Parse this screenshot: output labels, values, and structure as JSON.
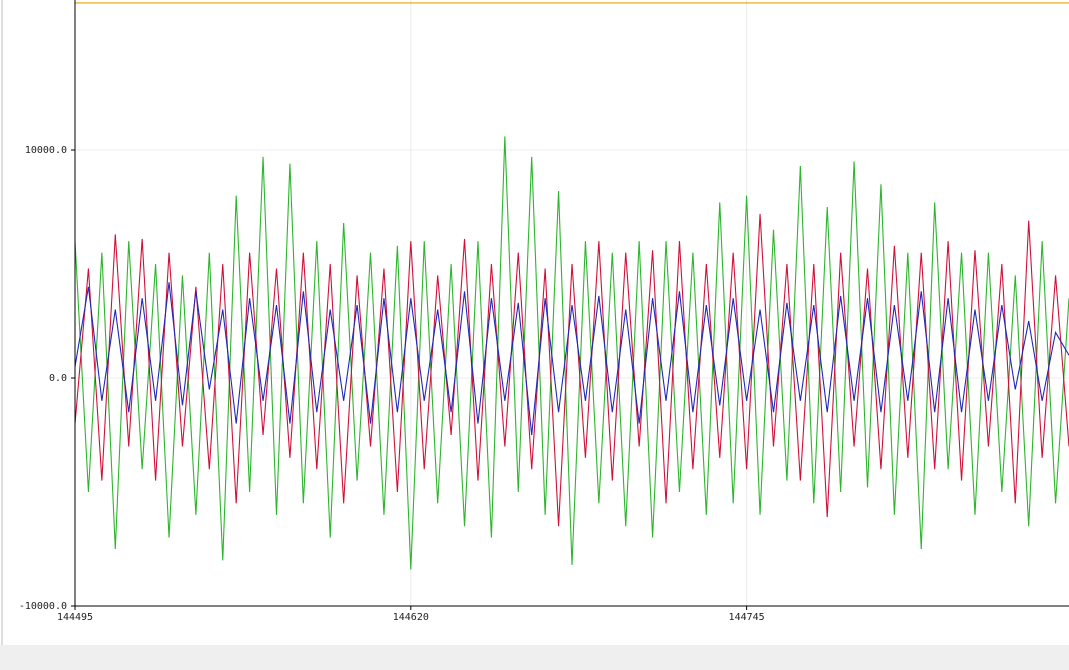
{
  "chart_data": {
    "type": "line",
    "x": [
      144495,
      144500,
      144505,
      144510,
      144515,
      144520,
      144525,
      144530,
      144535,
      144540,
      144545,
      144550,
      144555,
      144560,
      144565,
      144570,
      144575,
      144580,
      144585,
      144590,
      144595,
      144600,
      144605,
      144610,
      144615,
      144620,
      144625,
      144630,
      144635,
      144640,
      144645,
      144650,
      144655,
      144660,
      144665,
      144670,
      144675,
      144680,
      144685,
      144690,
      144695,
      144700,
      144705,
      144710,
      144715,
      144720,
      144725,
      144730,
      144735,
      144740,
      144745,
      144750,
      144755,
      144760,
      144765,
      144770,
      144775,
      144780,
      144785,
      144790,
      144795,
      144800,
      144805,
      144810,
      144815,
      144820,
      144825,
      144830,
      144835,
      144840,
      144845,
      144850,
      144855,
      144860,
      144865
    ],
    "series": [
      {
        "color": "#2db52d",
        "values": [
          6000,
          -5000,
          5500,
          -7500,
          6000,
          -4000,
          5000,
          -7000,
          4500,
          -6000,
          5500,
          -8000,
          8000,
          -5000,
          9700,
          -6000,
          9400,
          -5500,
          6000,
          -7000,
          6800,
          -4500,
          5500,
          -6000,
          5800,
          -8400,
          6000,
          -5500,
          5000,
          -6500,
          6000,
          -7000,
          10600,
          -5000,
          9700,
          -6000,
          8200,
          -8200,
          6000,
          -5500,
          5500,
          -6500,
          6000,
          -7000,
          6000,
          -5000,
          5500,
          -6000,
          7700,
          -5500,
          8000,
          -6000,
          6500,
          -4500,
          9300,
          -5500,
          7500,
          -5000,
          9500,
          -4800,
          8500,
          -6000,
          5500,
          -7500,
          7700,
          -4000,
          5500,
          -6000,
          5500,
          -5000,
          4500,
          -6500,
          6000,
          -5500,
          3500
        ]
      },
      {
        "color": "#d1103a",
        "values": [
          -2000,
          4800,
          -4500,
          6300,
          -3000,
          6100,
          -4500,
          5500,
          -3000,
          4000,
          -4000,
          5000,
          -5500,
          5500,
          -2500,
          4800,
          -3500,
          5500,
          -4000,
          5000,
          -5500,
          4500,
          -3000,
          4800,
          -5000,
          6000,
          -4000,
          4500,
          -2500,
          6100,
          -4500,
          5000,
          -3000,
          5500,
          -4000,
          4800,
          -6500,
          5000,
          -3500,
          6000,
          -4500,
          5500,
          -3000,
          5600,
          -5500,
          6000,
          -4000,
          5000,
          -3500,
          5500,
          -4000,
          7200,
          -3000,
          5000,
          -4500,
          5000,
          -6100,
          5500,
          -3000,
          4800,
          -4000,
          5800,
          -3500,
          5500,
          -4000,
          6000,
          -4500,
          5600,
          -3000,
          5000,
          -5500,
          6900,
          -3500,
          4500,
          -3000
        ]
      },
      {
        "color": "#1f29b8",
        "values": [
          500,
          4000,
          -1000,
          3000,
          -1500,
          3500,
          -1000,
          4200,
          -1200,
          3800,
          -500,
          3000,
          -2000,
          3500,
          -1000,
          3200,
          -2000,
          3800,
          -1500,
          3000,
          -1000,
          3200,
          -2000,
          3500,
          -1500,
          3500,
          -1000,
          3000,
          -1500,
          3800,
          -2000,
          3500,
          -1000,
          3300,
          -2500,
          3500,
          -1500,
          3200,
          -1000,
          3600,
          -1500,
          3000,
          -2000,
          3500,
          -1000,
          3800,
          -1500,
          3200,
          -1200,
          3500,
          -1000,
          3000,
          -1500,
          3300,
          -1000,
          3200,
          -1500,
          3600,
          -1000,
          3500,
          -1500,
          3200,
          -1000,
          3800,
          -1500,
          3500,
          -1500,
          3000,
          -1000,
          3200,
          -500,
          2500,
          -1000,
          2000,
          1000
        ]
      },
      {
        "color": "#e8a400",
        "values": [
          16450,
          16450,
          16450,
          16450,
          16450,
          16450,
          16450,
          16450,
          16450,
          16450,
          16450,
          16450,
          16450,
          16450,
          16450,
          16450,
          16450,
          16450,
          16450,
          16450,
          16450,
          16450,
          16450,
          16450,
          16450,
          16450,
          16450,
          16450,
          16450,
          16450,
          16450,
          16450,
          16450,
          16450,
          16450,
          16450,
          16450,
          16450,
          16450,
          16450,
          16450,
          16450,
          16450,
          16450,
          16450,
          16450,
          16450,
          16450,
          16450,
          16450,
          16450,
          16450,
          16450,
          16450,
          16450,
          16450,
          16450,
          16450,
          16450,
          16450,
          16450,
          16450,
          16450,
          16450,
          16450,
          16450,
          16450,
          16450,
          16450,
          16450,
          16450,
          16450,
          16450,
          16450,
          16450
        ]
      }
    ],
    "xlim": [
      144495,
      144865
    ],
    "xticks": [
      144495,
      144620,
      144745
    ],
    "ylim": [
      -10000,
      16580
    ],
    "yticks": [
      {
        "value": -10000,
        "label": "-10000.0"
      },
      {
        "value": 0,
        "label": "0.0"
      },
      {
        "value": 10000,
        "label": "10000.0"
      }
    ],
    "grid": true
  }
}
